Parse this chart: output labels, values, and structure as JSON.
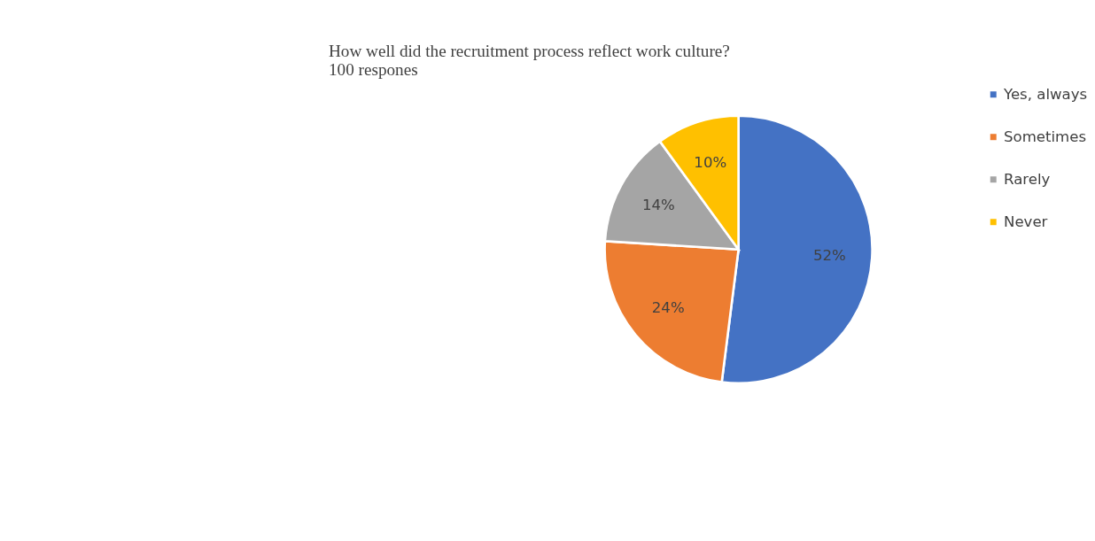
{
  "chart_data": {
    "type": "pie",
    "title": "How well did the recruitment process reflect work culture?",
    "subtitle": "100 respones",
    "categories": [
      "Yes, always",
      "Sometimes",
      "Rarely",
      "Never"
    ],
    "values": [
      52,
      24,
      14,
      10
    ],
    "colors": [
      "#4472c4",
      "#ed7d31",
      "#a5a5a5",
      "#ffc000"
    ],
    "value_labels": [
      "52%",
      "24%",
      "14%",
      "10%"
    ],
    "legend": "right"
  }
}
